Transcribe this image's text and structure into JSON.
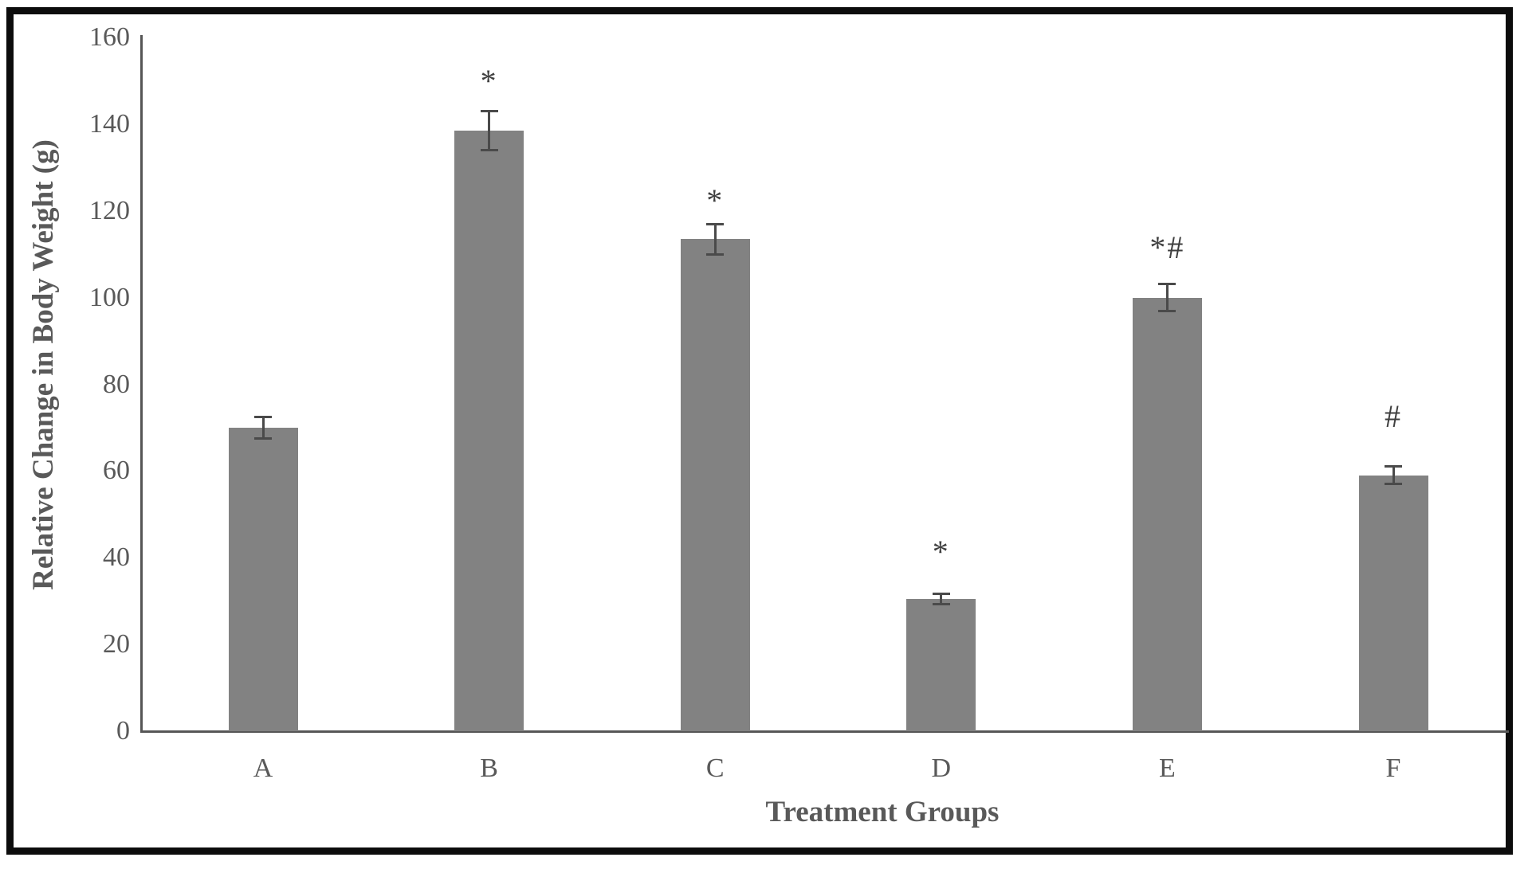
{
  "figure": {
    "background_color": "#ffffff",
    "border_color": "#0c0c0c"
  },
  "chart_data": {
    "type": "bar",
    "title": "",
    "xlabel": "Treatment Groups",
    "ylabel": "Relative Change in Body Weight (g)",
    "categories": [
      "A",
      "B",
      "C",
      "D",
      "E",
      "F"
    ],
    "values": [
      70,
      138.5,
      113.5,
      30.5,
      100,
      59
    ],
    "error_bars": [
      2.4,
      4.5,
      3.5,
      1.2,
      3.1,
      2
    ],
    "significance_markers": [
      "",
      "*",
      "*",
      "*",
      "*#",
      "#"
    ],
    "significance_marker_heights": [
      null,
      151.5,
      124,
      43,
      111.5,
      72.5
    ],
    "ylim": [
      0,
      160
    ],
    "yticks": [
      0,
      20,
      40,
      60,
      80,
      100,
      120,
      140,
      160
    ],
    "grid": false,
    "legend": "none",
    "bar_color": "#828282",
    "error_bar_color": "#4a4a4a",
    "axis_line_color": "#565656",
    "text_color": "#595959"
  }
}
